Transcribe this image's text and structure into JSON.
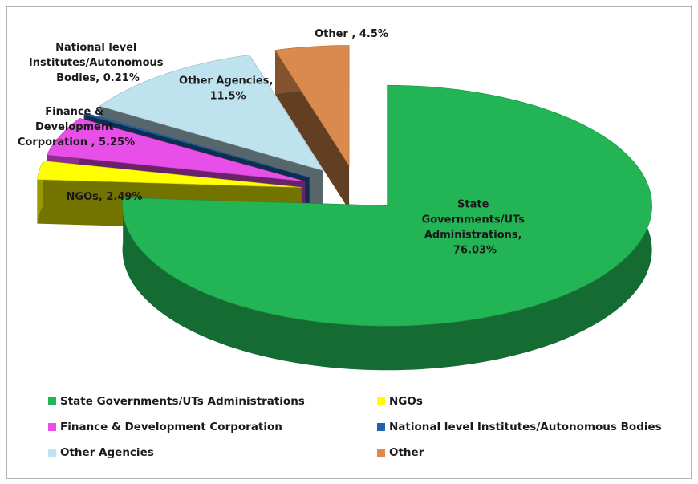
{
  "chart_data": {
    "type": "pie3d",
    "categories": [
      "State Governments/UTs Administrations",
      "NGOs",
      "Finance & Development Corporation",
      "National level Institutes/Autonomous Bodies",
      "Other Agencies",
      "Other"
    ],
    "values": [
      76.03,
      2.49,
      5.25,
      0.21,
      11.5,
      4.5
    ],
    "value_labels": [
      "State Governments/UTs Administrations, 76.03%",
      "NGOs, 2.49%",
      "Finance & Development Corporation , 5.25%",
      "National level Institutes/Autonomous Bodies, 0.21%",
      "Other Agencies, 11.5%",
      "Other , 4.5%"
    ],
    "colors": [
      "#22b455",
      "#ffff00",
      "#e84ee8",
      "#1f63b0",
      "#bfe3ee",
      "#d98a4c"
    ],
    "legend": "bottom"
  }
}
